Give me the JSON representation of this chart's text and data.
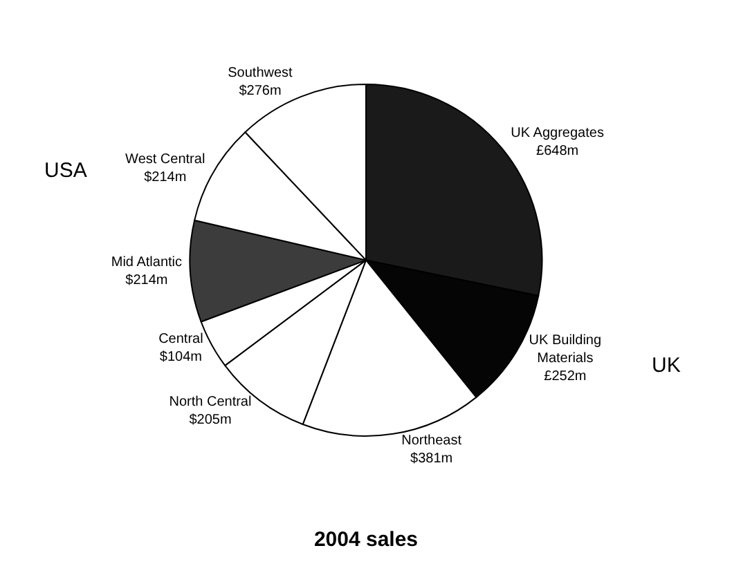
{
  "chart_data": {
    "type": "pie",
    "title": "2004 sales",
    "categories": [
      "UK Aggregates",
      "UK Building Materials",
      "Northeast",
      "North Central",
      "Central",
      "Mid Atlantic",
      "West Central",
      "Southwest"
    ],
    "values": [
      648,
      252,
      381,
      205,
      104,
      214,
      214,
      276
    ],
    "value_labels": [
      "£648m",
      "£252m",
      "$381m",
      "$205m",
      "$104m",
      "$214m",
      "$214m",
      "$276m"
    ],
    "colors": [
      "#1a1a1a",
      "#050505",
      "#ffffff",
      "#ffffff",
      "#ffffff",
      "#3c3c3c",
      "#ffffff",
      "#ffffff"
    ],
    "annotations": [
      "USA",
      "UK"
    ],
    "legend": false
  }
}
